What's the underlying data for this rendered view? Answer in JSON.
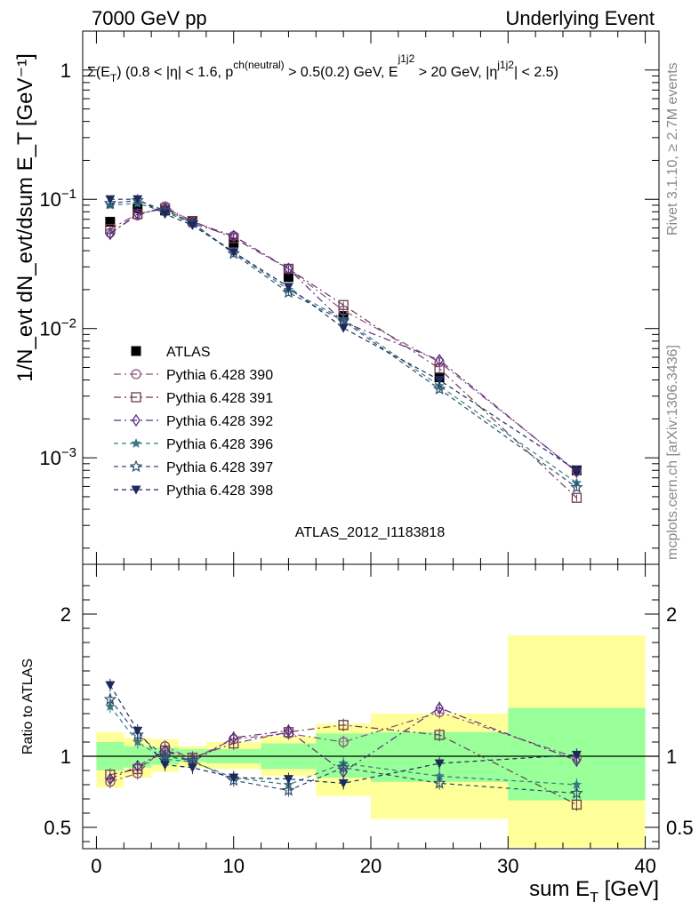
{
  "header": {
    "left": "7000 GeV pp",
    "right": "Underlying Event"
  },
  "side_labels": {
    "upper": "Rivet 3.1.10, ≥ 2.7M events",
    "lower": "mcplots.cern.ch [arXiv:1306.3436]"
  },
  "chart_data": [
    {
      "type": "scatter",
      "title": "Σ(E_T) (0.8 < |η| < 1.6, p^ch(neutral) > 0.5(0.2) GeV, E_T^j1j2 > 20 GeV, |η^j1j2| < 2.5)",
      "watermark": "ATLAS_2012_I1183818",
      "ylabel": "1/N_evt dN_evt/dsum E_T [GeV^-1]",
      "yscale": "log",
      "ylim": [
        0.00015,
        2.0
      ],
      "xlim": [
        -1,
        41
      ],
      "y_ticks": [
        "10^-3",
        "10^-2",
        "10^-1",
        "1"
      ],
      "legend_position": "left",
      "series": [
        {
          "name": "ATLAS",
          "color": "#000000",
          "marker": "square-filled",
          "line": "none",
          "x": [
            1,
            3,
            5,
            7,
            10,
            14,
            18,
            25,
            35
          ],
          "y": [
            0.067,
            0.085,
            0.082,
            0.068,
            0.046,
            0.025,
            0.0125,
            0.0042,
            0.0008
          ],
          "err": [
            0.004,
            0.004,
            0.003,
            0.003,
            0.002,
            0.001,
            0.0006,
            0.0003,
            0.00013
          ]
        },
        {
          "name": "Pythia 6.428 390",
          "color": "#8a4f7d",
          "marker": "circle-open",
          "line": "dashdot",
          "x": [
            1,
            3,
            5,
            7,
            10,
            14,
            18,
            25,
            35
          ],
          "y": [
            0.055,
            0.075,
            0.088,
            0.067,
            0.052,
            0.029,
            0.0138,
            0.0055,
            0.00079
          ]
        },
        {
          "name": "Pythia 6.428 391",
          "color": "#6b3a4e",
          "marker": "square-open",
          "line": "dashdot",
          "x": [
            1,
            3,
            5,
            7,
            10,
            14,
            18,
            25,
            35
          ],
          "y": [
            0.059,
            0.077,
            0.085,
            0.068,
            0.05,
            0.029,
            0.0152,
            0.0049,
            0.00049
          ]
        },
        {
          "name": "Pythia 6.428 392",
          "color": "#5a2d82",
          "marker": "diamond-open",
          "line": "dashdot",
          "x": [
            1,
            3,
            5,
            7,
            10,
            14,
            18,
            25,
            35
          ],
          "y": [
            0.054,
            0.077,
            0.085,
            0.065,
            0.052,
            0.029,
            0.0112,
            0.0057,
            0.00078
          ]
        },
        {
          "name": "Pythia 6.428 396",
          "color": "#3a7a80",
          "marker": "star-filled",
          "line": "dashed",
          "x": [
            1,
            3,
            5,
            7,
            10,
            14,
            18,
            25,
            35
          ],
          "y": [
            0.09,
            0.093,
            0.08,
            0.065,
            0.039,
            0.02,
            0.0118,
            0.0036,
            0.00064
          ]
        },
        {
          "name": "Pythia 6.428 397",
          "color": "#2e4e6e",
          "marker": "star-open",
          "line": "dashed",
          "x": [
            1,
            3,
            5,
            7,
            10,
            14,
            18,
            25,
            35
          ],
          "y": [
            0.093,
            0.098,
            0.082,
            0.066,
            0.038,
            0.019,
            0.0115,
            0.0034,
            0.00059
          ]
        },
        {
          "name": "Pythia 6.428 398",
          "color": "#1c2a5e",
          "marker": "triangle-down-filled",
          "line": "dashed",
          "x": [
            1,
            3,
            5,
            7,
            10,
            14,
            18,
            25,
            35
          ],
          "y": [
            0.1,
            0.1,
            0.077,
            0.063,
            0.039,
            0.021,
            0.0101,
            0.004,
            0.0008
          ]
        }
      ]
    },
    {
      "type": "scatter",
      "ylabel": "Ratio to ATLAS",
      "xlabel": "sum E_T [GeV]",
      "ylim": [
        0.35,
        2.35
      ],
      "xlim": [
        -1,
        41
      ],
      "x_ticks": [
        0,
        10,
        20,
        30,
        40
      ],
      "y_ticks": [
        0.5,
        1,
        2
      ],
      "bands": {
        "edges": [
          0,
          2,
          4,
          6,
          8,
          12,
          16,
          20,
          30,
          40
        ],
        "yellow_lo": [
          0.78,
          0.85,
          0.89,
          0.92,
          0.91,
          0.86,
          0.72,
          0.56,
          0.36
        ],
        "yellow_hi": [
          1.17,
          1.13,
          1.12,
          1.07,
          1.1,
          1.14,
          1.23,
          1.3,
          1.85
        ],
        "green_lo": [
          0.9,
          0.92,
          0.94,
          0.96,
          0.95,
          0.91,
          0.85,
          0.82,
          0.69
        ],
        "green_hi": [
          1.1,
          1.07,
          1.06,
          1.05,
          1.05,
          1.09,
          1.16,
          1.17,
          1.34
        ]
      },
      "series": [
        {
          "name": "Pythia 6.428 390",
          "color": "#8a4f7d",
          "marker": "circle-open",
          "line": "dashdot",
          "x": [
            1,
            3,
            5,
            7,
            10,
            14,
            18,
            25,
            35
          ],
          "y": [
            0.82,
            0.88,
            1.07,
            0.98,
            1.12,
            1.16,
            1.1,
            1.31,
            0.99
          ]
        },
        {
          "name": "Pythia 6.428 391",
          "color": "#6b3a4e",
          "marker": "square-open",
          "line": "dashdot",
          "x": [
            1,
            3,
            5,
            7,
            10,
            14,
            18,
            25,
            35
          ],
          "y": [
            0.87,
            0.91,
            1.04,
            0.99,
            1.09,
            1.17,
            1.22,
            1.15,
            0.66
          ]
        },
        {
          "name": "Pythia 6.428 392",
          "color": "#5a2d82",
          "marker": "diamond-open",
          "line": "dashdot",
          "x": [
            1,
            3,
            5,
            7,
            10,
            14,
            18,
            25,
            35
          ],
          "y": [
            0.84,
            0.93,
            1.04,
            0.96,
            1.13,
            1.18,
            0.89,
            1.34,
            0.97
          ]
        },
        {
          "name": "Pythia 6.428 396",
          "color": "#3a7a80",
          "marker": "star-filled",
          "line": "dashed",
          "x": [
            1,
            3,
            5,
            7,
            10,
            14,
            18,
            25,
            35
          ],
          "y": [
            1.35,
            1.1,
            0.98,
            0.96,
            0.85,
            0.8,
            0.95,
            0.86,
            0.8
          ]
        },
        {
          "name": "Pythia 6.428 397",
          "color": "#2e4e6e",
          "marker": "star-open",
          "line": "dashed",
          "x": [
            1,
            3,
            5,
            7,
            10,
            14,
            18,
            25,
            35
          ],
          "y": [
            1.4,
            1.15,
            1.0,
            0.97,
            0.83,
            0.76,
            0.92,
            0.81,
            0.74
          ]
        },
        {
          "name": "Pythia 6.428 398",
          "color": "#1c2a5e",
          "marker": "triangle-down-filled",
          "line": "dashed",
          "x": [
            1,
            3,
            5,
            7,
            10,
            14,
            18,
            25,
            35
          ],
          "y": [
            1.5,
            1.18,
            0.94,
            0.92,
            0.85,
            0.84,
            0.81,
            0.95,
            1.01
          ]
        }
      ]
    }
  ]
}
